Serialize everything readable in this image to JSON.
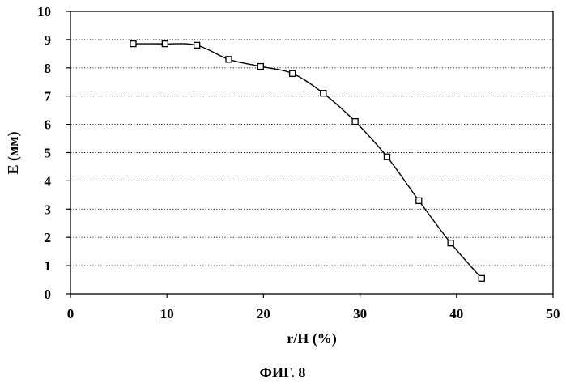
{
  "chart_data": {
    "type": "line",
    "xlabel": "r/H (%)",
    "ylabel": "E (мм)",
    "caption": "ФИГ. 8",
    "xlim": [
      0,
      50
    ],
    "ylim": [
      0,
      10
    ],
    "x_ticks": [
      "0",
      "10",
      "20",
      "30",
      "40",
      "50"
    ],
    "y_ticks": [
      "0",
      "1",
      "2",
      "3",
      "4",
      "5",
      "6",
      "7",
      "8",
      "9",
      "10"
    ],
    "grid": "horizontal-dotted",
    "marker": "open-square",
    "series": [
      {
        "x": [
          6.5,
          9.8,
          13.1,
          16.4,
          19.7,
          23.0,
          26.2,
          29.5,
          32.8,
          36.1,
          39.4,
          42.6
        ],
        "y": [
          8.85,
          8.85,
          8.8,
          8.3,
          8.05,
          7.8,
          7.1,
          6.1,
          4.85,
          3.3,
          1.8,
          0.55
        ]
      }
    ]
  }
}
